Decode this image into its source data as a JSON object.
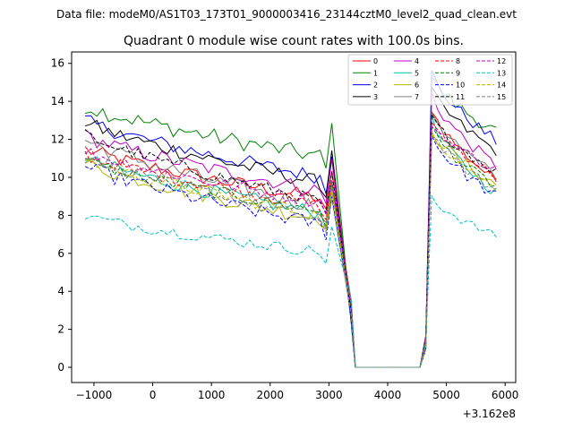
{
  "suptitle": "Data file: modeM0/AS1T03_173T01_9000003416_23144cztM0_level2_quad_clean.evt",
  "chart_data": {
    "type": "line",
    "title": "Quadrant 0 module wise count rates with 100.0s bins.",
    "xlabel": "",
    "ylabel": "",
    "x_offset_label": "+3.162e8",
    "xlim": [
      -1380,
      6180
    ],
    "ylim": [
      -0.8,
      16.6
    ],
    "xticks": [
      -1000,
      0,
      1000,
      2000,
      3000,
      4000,
      5000,
      6000
    ],
    "yticks": [
      0,
      2,
      4,
      6,
      8,
      10,
      12,
      14,
      16
    ],
    "xtick_labels": [
      "−1000",
      "0",
      "1000",
      "2000",
      "3000",
      "4000",
      "5000",
      "6000"
    ],
    "ytick_labels": [
      "0",
      "2",
      "4",
      "6",
      "8",
      "10",
      "12",
      "14",
      "16"
    ],
    "legend_position": "top-right",
    "gap_x": [
      3450,
      4650
    ],
    "shape": {
      "x_start": -1150,
      "x_step": 100,
      "n_pre": 43,
      "dip_x": 3380,
      "zero_start": 3450,
      "zero_end": 4550,
      "ramp_x": 4650,
      "post_start": 4750,
      "post_end": 5850
    },
    "series": [
      {
        "name": "0",
        "color": "#ff0000",
        "dash": false,
        "start": 11.5,
        "end": 8.8,
        "peak": 13.7,
        "post_end": 9.8,
        "noise": 0.4
      },
      {
        "name": "1",
        "color": "#008000",
        "dash": false,
        "start": 13.8,
        "end": 11.0,
        "peak": 15.3,
        "post_end": 12.4,
        "noise": 0.45
      },
      {
        "name": "2",
        "color": "#0000ff",
        "dash": false,
        "start": 13.0,
        "end": 9.9,
        "peak": 15.5,
        "post_end": 11.9,
        "noise": 0.4
      },
      {
        "name": "3",
        "color": "#000000",
        "dash": false,
        "start": 12.9,
        "end": 9.6,
        "peak": 14.6,
        "post_end": 11.4,
        "noise": 0.4
      },
      {
        "name": "4",
        "color": "#c000c0",
        "dash": false,
        "start": 12.2,
        "end": 9.2,
        "peak": 14.4,
        "post_end": 10.6,
        "noise": 0.4
      },
      {
        "name": "5",
        "color": "#00c0a0",
        "dash": false,
        "start": 11.0,
        "end": 8.0,
        "peak": 13.0,
        "post_end": 9.2,
        "noise": 0.4
      },
      {
        "name": "6",
        "color": "#b5b500",
        "dash": false,
        "start": 10.8,
        "end": 7.7,
        "peak": 12.6,
        "post_end": 9.6,
        "noise": 0.4
      },
      {
        "name": "7",
        "color": "#808080",
        "dash": false,
        "start": 12.0,
        "end": 8.3,
        "peak": 13.6,
        "post_end": 10.0,
        "noise": 0.45
      },
      {
        "name": "8",
        "color": "#ff0000",
        "dash": true,
        "start": 11.2,
        "end": 8.4,
        "peak": 13.0,
        "post_end": 10.1,
        "noise": 0.35
      },
      {
        "name": "9",
        "color": "#008000",
        "dash": true,
        "start": 10.9,
        "end": 8.1,
        "peak": 12.6,
        "post_end": 9.5,
        "noise": 0.35
      },
      {
        "name": "10",
        "color": "#0000ff",
        "dash": true,
        "start": 10.6,
        "end": 7.4,
        "peak": 12.2,
        "post_end": 9.0,
        "noise": 0.4
      },
      {
        "name": "11",
        "color": "#000000",
        "dash": true,
        "start": 12.3,
        "end": 8.6,
        "peak": 13.2,
        "post_end": 10.3,
        "noise": 0.35
      },
      {
        "name": "12",
        "color": "#c000c0",
        "dash": true,
        "start": 11.4,
        "end": 8.6,
        "peak": 12.9,
        "post_end": 10.4,
        "noise": 0.35
      },
      {
        "name": "13",
        "color": "#00c0c0",
        "dash": true,
        "start": 8.0,
        "end": 6.0,
        "peak": 9.0,
        "post_end": 6.9,
        "noise": 0.3
      },
      {
        "name": "14",
        "color": "#b5b500",
        "dash": true,
        "start": 11.0,
        "end": 7.9,
        "peak": 12.5,
        "post_end": 9.4,
        "noise": 0.35
      },
      {
        "name": "15",
        "color": "#808080",
        "dash": true,
        "start": 11.3,
        "end": 7.6,
        "peak": 12.4,
        "post_end": 9.3,
        "noise": 0.35
      }
    ]
  }
}
